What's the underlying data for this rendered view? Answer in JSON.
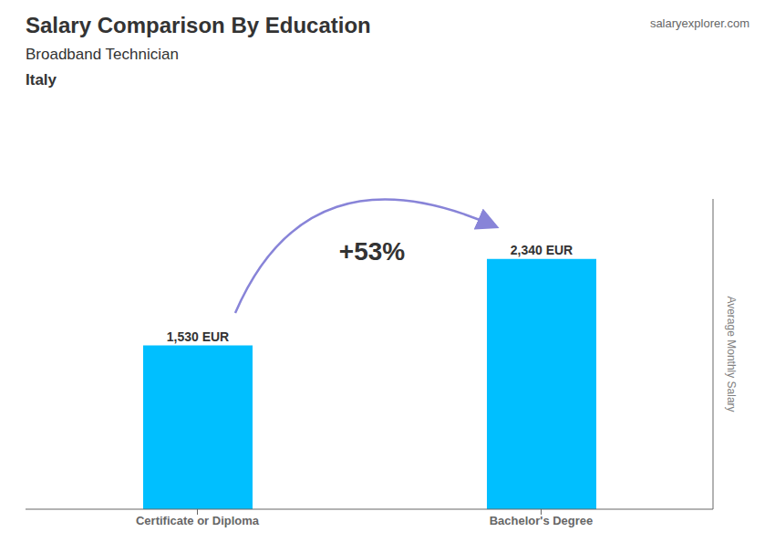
{
  "chart_data": {
    "type": "bar",
    "title": "Salary Comparison By Education",
    "subtitle": "Broadband Technician",
    "annotations": [
      "Italy",
      "+53%",
      "salaryexplorer.com"
    ],
    "y_label": "Average Monthly Salary",
    "categories": [
      "Certificate or Diploma",
      "Bachelor's Degree"
    ],
    "values": [
      1530,
      2340
    ],
    "value_labels": [
      "1,530 EUR",
      "2,340 EUR"
    ],
    "color": "#00BFFF",
    "ylim": [
      0,
      2900
    ],
    "grid": false,
    "data_labels": true,
    "tick_labels": "x"
  }
}
